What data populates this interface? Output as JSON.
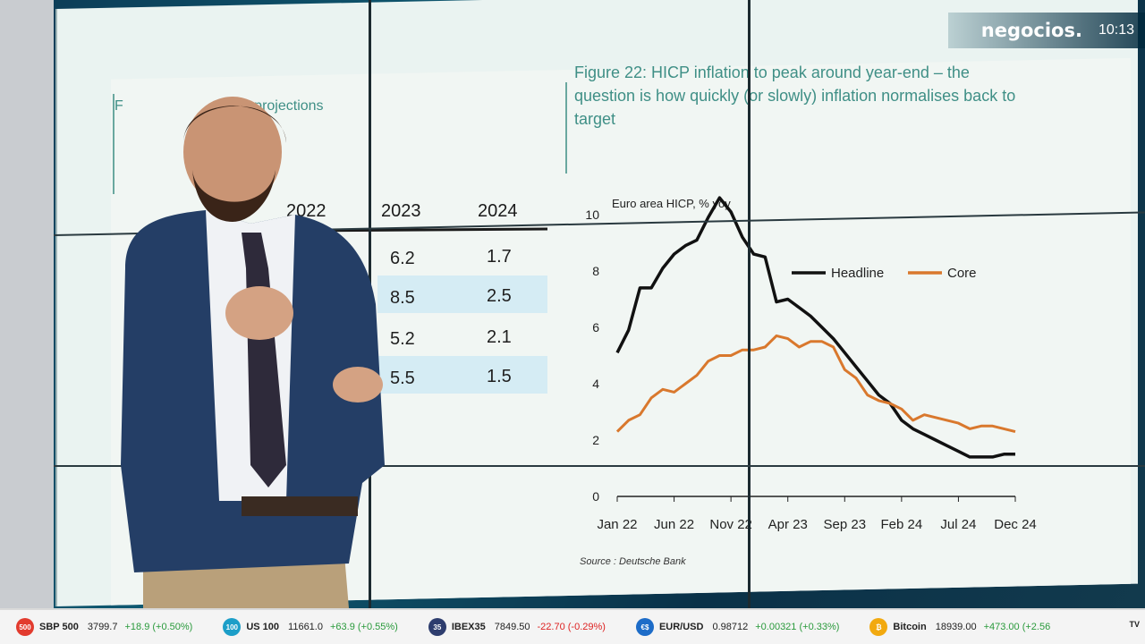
{
  "broadcast": {
    "brand": "negocios.",
    "time": "10:13"
  },
  "projections_table": {
    "caption_partial": "F",
    "caption_partial2": "CP projections",
    "headers": [
      "2022",
      "2023",
      "2024"
    ],
    "rows": [
      {
        "y2023": "6.2",
        "y2024": "1.7",
        "shaded": false
      },
      {
        "y2023": "8.5",
        "y2024": "2.5",
        "shaded": true
      },
      {
        "y2023": "5.2",
        "y2024": "2.1",
        "shaded": false
      },
      {
        "y2023": "5.5",
        "y2024": "1.5",
        "shaded": true
      }
    ]
  },
  "chart_data": {
    "type": "line",
    "title": "Figure 22: HICP inflation to peak around year-end – the question is how quickly (or slowly) inflation normalises back to target",
    "ylabel": "Euro area HICP, % yoy",
    "xlabel": "",
    "ylim": [
      0,
      10
    ],
    "yticks": [
      0,
      2,
      4,
      6,
      8,
      10
    ],
    "xticks": [
      "Jan 22",
      "Jun 22",
      "Nov 22",
      "Apr 23",
      "Sep 23",
      "Feb 24",
      "Jul 24",
      "Dec 24"
    ],
    "legend_position": "top-right",
    "grid": false,
    "x": [
      "Jan 22",
      "Feb 22",
      "Mar 22",
      "Apr 22",
      "May 22",
      "Jun 22",
      "Jul 22",
      "Aug 22",
      "Sep 22",
      "Oct 22",
      "Nov 22",
      "Dec 22",
      "Jan 23",
      "Feb 23",
      "Mar 23",
      "Apr 23",
      "May 23",
      "Jun 23",
      "Jul 23",
      "Aug 23",
      "Sep 23",
      "Oct 23",
      "Nov 23",
      "Dec 23",
      "Jan 24",
      "Feb 24",
      "Mar 24",
      "Apr 24",
      "May 24",
      "Jun 24",
      "Jul 24",
      "Aug 24",
      "Sep 24",
      "Oct 24",
      "Nov 24",
      "Dec 24"
    ],
    "series": [
      {
        "name": "Headline",
        "color": "#111111",
        "values": [
          5.1,
          5.9,
          7.4,
          7.4,
          8.1,
          8.6,
          8.9,
          9.1,
          9.9,
          10.6,
          10.1,
          9.2,
          8.6,
          8.5,
          6.9,
          7.0,
          6.7,
          6.4,
          6.0,
          5.6,
          5.1,
          4.6,
          4.1,
          3.6,
          3.3,
          2.7,
          2.4,
          2.2,
          2.0,
          1.8,
          1.6,
          1.4,
          1.4,
          1.4,
          1.5,
          1.5
        ]
      },
      {
        "name": "Core",
        "color": "#d9782d",
        "values": [
          2.3,
          2.7,
          2.9,
          3.5,
          3.8,
          3.7,
          4.0,
          4.3,
          4.8,
          5.0,
          5.0,
          5.2,
          5.2,
          5.3,
          5.7,
          5.6,
          5.3,
          5.5,
          5.5,
          5.3,
          4.5,
          4.2,
          3.6,
          3.4,
          3.3,
          3.1,
          2.7,
          2.9,
          2.8,
          2.7,
          2.6,
          2.4,
          2.5,
          2.5,
          2.4,
          2.3
        ]
      }
    ],
    "source": "Source : Deutsche Bank"
  },
  "ticker": [
    {
      "name": "SBP 500",
      "value": "3799.7",
      "change": "+18.9 (+0.50%)",
      "dir": "up",
      "icon_color": "#e23b2e",
      "icon_text": "500"
    },
    {
      "name": "US 100",
      "value": "11661.0",
      "change": "+63.9 (+0.55%)",
      "dir": "up",
      "icon_color": "#1c9ec8",
      "icon_text": "100"
    },
    {
      "name": "IBEX35",
      "value": "7849.50",
      "change": "-22.70 (-0.29%)",
      "dir": "down",
      "icon_color": "#2e3d6e",
      "icon_text": "35"
    },
    {
      "name": "EUR/USD",
      "value": "0.98712",
      "change": "+0.00321 (+0.33%)",
      "dir": "up",
      "icon_color": "#1d6cc8",
      "icon_text": "€$"
    },
    {
      "name": "Bitcoin",
      "value": "18939.00",
      "change": "+473.00 (+2.56",
      "dir": "up",
      "icon_color": "#f2a90f",
      "icon_text": "₿"
    }
  ],
  "ticker_tail": "TV"
}
